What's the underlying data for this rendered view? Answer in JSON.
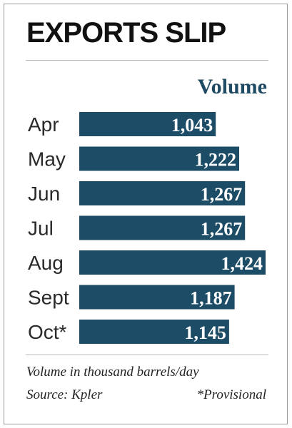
{
  "chart_data": {
    "type": "bar",
    "orientation": "horizontal",
    "title": "EXPORTS SLIP",
    "series_label": "Volume",
    "categories": [
      "Apr",
      "May",
      "Jun",
      "Jul",
      "Aug",
      "Sept",
      "Oct*"
    ],
    "values": [
      1043,
      1222,
      1267,
      1267,
      1424,
      1187,
      1145
    ],
    "value_labels": [
      "1,043",
      "1,222",
      "1,267",
      "1,267",
      "1,424",
      "1,187",
      "1,145"
    ],
    "xlim": [
      0,
      1424
    ],
    "grid": false,
    "legend": "none",
    "unit_note": "Volume in thousand barrels/day",
    "source": "Source: Kpler",
    "provisional_note": "*Provisional"
  },
  "colors": {
    "bar": "#1c4c66",
    "title": "#111111",
    "series_label": "#1f4a63"
  }
}
